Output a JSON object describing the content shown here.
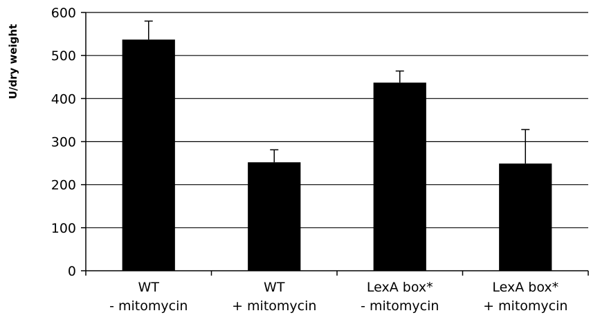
{
  "chart_data": {
    "type": "bar",
    "title": "",
    "xlabel": "",
    "ylabel": "U/dry weight",
    "ylim": [
      0,
      600
    ],
    "yticks": [
      0,
      100,
      200,
      300,
      400,
      500,
      600
    ],
    "grid": true,
    "legend": "none",
    "bar_color": "#000000",
    "categories": [
      [
        "WT",
        "- mitomycin"
      ],
      [
        "WT",
        "+ mitomycin"
      ],
      [
        "LexA box*",
        "- mitomycin"
      ],
      [
        "LexA box*",
        "+ mitomycin"
      ]
    ],
    "values": [
      537,
      252,
      437,
      249
    ],
    "errors": [
      43,
      29,
      27,
      79
    ]
  }
}
